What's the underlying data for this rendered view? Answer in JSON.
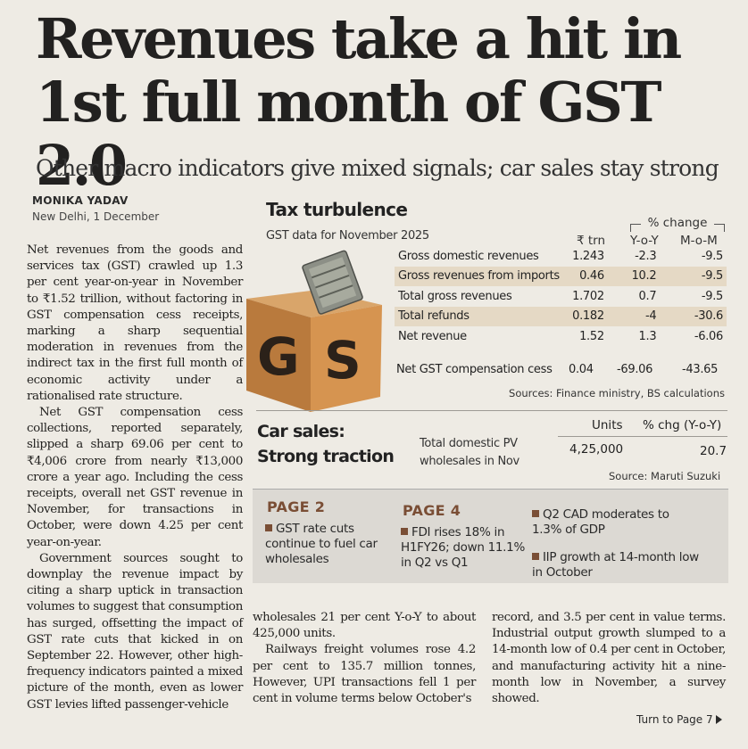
{
  "article": {
    "headline": "Revenues take a hit in 1st full month of GST 2.0",
    "deck": "Other macro indicators give mixed signals; car sales stay strong",
    "byline": "MONIKA YADAV",
    "dateline": "New Delhi, 1 December",
    "col1": {
      "p1": "Net revenues from the goods and services tax (GST) crawled up 1.3 per cent year-on-year in November to ₹1.52 trillion, without factoring in GST compensation cess receipts, marking a sharp sequential moderation in revenues from the indirect tax in the first full month of economic activity under a rationalised rate structure.",
      "p2": "Net GST compensation cess collections, reported separately, slipped a sharp 69.06 per cent to ₹4,006 crore from nearly ₹13,000 crore a year ago. Including the cess receipts, overall net GST revenue in November, for transactions in October, were down 4.25 per cent year-on-year.",
      "p3": "Government sources sought to downplay the revenue impact by citing a sharp uptick in transaction volumes to suggest that consumption has surged, offsetting the impact of GST rate cuts that kicked in on September 22. However, other high-frequency indicators painted a mixed picture of the month, even as lower GST levies lifted passenger-vehicle"
    },
    "col2": {
      "p1": "wholesales 21 per cent Y-o-Y to about 425,000 units.",
      "p2": "Railways freight volumes rose 4.2 per cent to 135.7 million tonnes, However, UPI transactions fell 1 per cent in volume terms below October's"
    },
    "col3": {
      "p1": "record, and 3.5 per cent in value terms. Industrial output growth slumped to a 14-month low of 0.4 per cent in October, and manufacturing activity hit a nine-month low in November, a survey showed."
    },
    "turn": "Turn to Page 7"
  },
  "gst_box": {
    "title": "Tax turbulence",
    "subtitle": "GST data for November 2025",
    "pct_header": "% change",
    "col_trn": "₹ trn",
    "col_yoy": "Y-o-Y",
    "col_mom": "M-o-M",
    "rows": [
      {
        "label": "Gross domestic revenues",
        "trn": "1.243",
        "yoy": "-2.3",
        "mom": "-9.5"
      },
      {
        "label": "Gross revenues from imports",
        "trn": "0.46",
        "yoy": "10.2",
        "mom": "-9.5"
      },
      {
        "label": "Total gross revenues",
        "trn": "1.702",
        "yoy": "0.7",
        "mom": "-9.5"
      },
      {
        "label": "Total refunds",
        "trn": "0.182",
        "yoy": "-4",
        "mom": "-30.6"
      },
      {
        "label": "Net revenue",
        "trn": "1.52",
        "yoy": "1.3",
        "mom": "-6.06"
      }
    ],
    "cess": {
      "label": "Net GST compensation cess",
      "trn": "0.04",
      "yoy": "-69.06",
      "mom": "-43.65"
    },
    "source": "Sources: Finance ministry, BS calculations",
    "illustration_letters": [
      "G",
      "S"
    ]
  },
  "car_box": {
    "title_line1": "Car sales:",
    "title_line2": "Strong traction",
    "units_header": "Units",
    "pct_header": "% chg (Y-o-Y)",
    "label": "Total domestic PV wholesales in Nov",
    "units": "4,25,000",
    "pct": "20.7",
    "source": "Source: Maruti Suzuki"
  },
  "pages_panel": {
    "page2_title": "PAGE 2",
    "page2_item": "GST rate cuts continue to fuel car wholesales",
    "page4_title": "PAGE 4",
    "page4_item": "FDI rises 18% in H1FY26; down 11.1% in Q2 vs Q1",
    "item_a": "Q2 CAD moderates to 1.3% of GDP",
    "item_b": "IIP growth at 14-month low in October"
  },
  "colors": {
    "paper": "#eeebe4",
    "accent": "#7a4e35",
    "table_shade": "#e5d9c5",
    "panel": "#dcd9d3"
  }
}
